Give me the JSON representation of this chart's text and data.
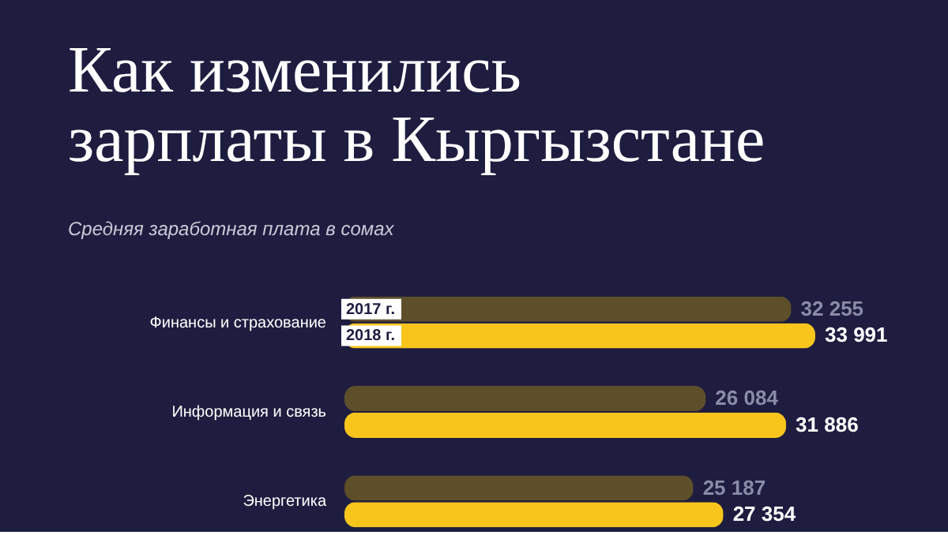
{
  "chart_data": {
    "type": "bar",
    "orientation": "horizontal",
    "title": "Как изменились\nзарплаты в Кыргызстане",
    "subtitle": "Средняя заработная плата в сомах",
    "categories": [
      "Финансы и страхование",
      "Информация и связь",
      "Энергетика"
    ],
    "series": [
      {
        "name": "2017 г.",
        "color": "#5e4f2b",
        "values": [
          32255,
          26084,
          25187
        ],
        "value_labels": [
          "32 255",
          "26 084",
          "25 187"
        ]
      },
      {
        "name": "2018 г.",
        "color": "#f7c51c",
        "values": [
          33991,
          31886,
          27354
        ],
        "value_labels": [
          "33 991",
          "31 886",
          "27 354"
        ]
      }
    ],
    "legend": false,
    "grid": false
  }
}
